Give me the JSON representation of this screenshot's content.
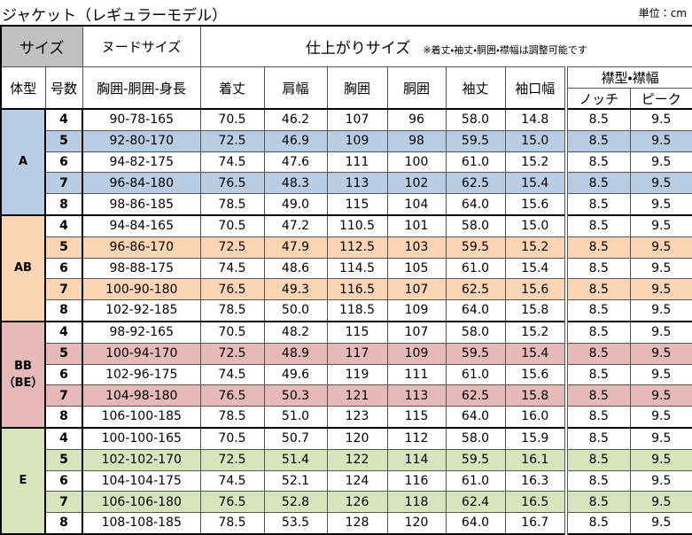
{
  "title": "ジャケット（レギュラーモデル）",
  "unit": "単位：cm",
  "header": {
    "size": "サイズ",
    "nude": "ヌードサイズ",
    "finished": "仕上がりサイズ",
    "note": "※着丈・袖丈・胴囲・襟幅は調整可能です",
    "body_type": "体型",
    "size_no": "号数",
    "nude_cols": "胸囲-胴囲-身長",
    "columns": [
      "着丈",
      "肩幅",
      "胸囲",
      "胴囲",
      "袖丈",
      "袖口幅"
    ],
    "collar": "襟型・襟幅",
    "collar_types": [
      "ノッチ",
      "ピーク"
    ]
  },
  "groups": [
    {
      "name": "A",
      "color": "#b8cce4",
      "rows": [
        [
          "4",
          "90-78-165",
          "70.5",
          "46.2",
          "107",
          "96",
          "58.0",
          "14.8",
          "8.5",
          "9.5"
        ],
        [
          "5",
          "92-80-170",
          "72.5",
          "46.9",
          "109",
          "98",
          "59.5",
          "15.0",
          "8.5",
          "9.5"
        ],
        [
          "6",
          "94-82-175",
          "74.5",
          "47.6",
          "111",
          "100",
          "61.0",
          "15.2",
          "8.5",
          "9.5"
        ],
        [
          "7",
          "96-84-180",
          "76.5",
          "48.3",
          "113",
          "102",
          "62.5",
          "15.4",
          "8.5",
          "9.5"
        ],
        [
          "8",
          "98-86-185",
          "78.5",
          "49.0",
          "115",
          "104",
          "64.0",
          "15.6",
          "8.5",
          "9.5"
        ]
      ]
    },
    {
      "name": "AB",
      "color": "#fcd5b4",
      "rows": [
        [
          "4",
          "94-84-165",
          "70.5",
          "47.2",
          "110.5",
          "101",
          "58.0",
          "15.0",
          "8.5",
          "9.5"
        ],
        [
          "5",
          "96-86-170",
          "72.5",
          "47.9",
          "112.5",
          "103",
          "59.5",
          "15.2",
          "8.5",
          "9.5"
        ],
        [
          "6",
          "98-88-175",
          "74.5",
          "48.6",
          "114.5",
          "105",
          "61.0",
          "15.4",
          "8.5",
          "9.5"
        ],
        [
          "7",
          "100-90-180",
          "76.5",
          "49.3",
          "116.5",
          "107",
          "62.5",
          "15.6",
          "8.5",
          "9.5"
        ],
        [
          "8",
          "102-92-185",
          "78.5",
          "50.0",
          "118.5",
          "109",
          "64.0",
          "15.8",
          "8.5",
          "9.5"
        ]
      ]
    },
    {
      "name": "BB\n（BE）",
      "color": "#e6b8b7",
      "rows": [
        [
          "4",
          "98-92-165",
          "70.5",
          "48.2",
          "115",
          "107",
          "58.0",
          "15.2",
          "8.5",
          "9.5"
        ],
        [
          "5",
          "100-94-170",
          "72.5",
          "48.9",
          "117",
          "109",
          "59.5",
          "15.4",
          "8.5",
          "9.5"
        ],
        [
          "6",
          "102-96-175",
          "74.5",
          "49.6",
          "119",
          "111",
          "61.0",
          "15.6",
          "8.5",
          "9.5"
        ],
        [
          "7",
          "104-98-180",
          "76.5",
          "50.3",
          "121",
          "113",
          "62.5",
          "15.8",
          "8.5",
          "9.5"
        ],
        [
          "8",
          "106-100-185",
          "78.5",
          "51.0",
          "123",
          "115",
          "64.0",
          "16.0",
          "8.5",
          "9.5"
        ]
      ]
    },
    {
      "name": "E",
      "color": "#d8e4bc",
      "rows": [
        [
          "4",
          "100-100-165",
          "70.5",
          "50.7",
          "120",
          "112",
          "58.0",
          "15.9",
          "8.5",
          "9.5"
        ],
        [
          "5",
          "102-102-170",
          "72.5",
          "51.4",
          "122",
          "114",
          "59.5",
          "16.1",
          "8.5",
          "9.5"
        ],
        [
          "6",
          "104-104-175",
          "74.5",
          "52.1",
          "124",
          "116",
          "61.0",
          "16.3",
          "8.5",
          "9.5"
        ],
        [
          "7",
          "106-106-180",
          "76.5",
          "52.8",
          "126",
          "118",
          "62.4",
          "16.5",
          "8.5",
          "9.5"
        ],
        [
          "8",
          "108-108-185",
          "78.5",
          "53.5",
          "128",
          "120",
          "64.0",
          "16.7",
          "8.5",
          "9.5"
        ]
      ]
    }
  ]
}
